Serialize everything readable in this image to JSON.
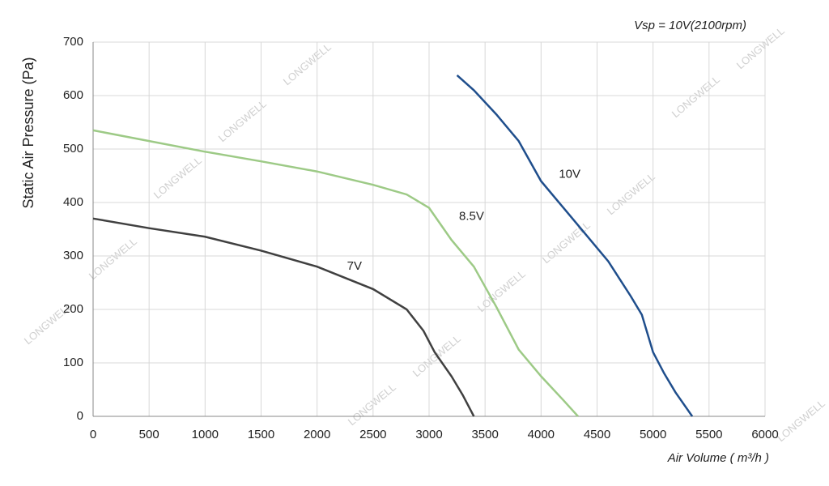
{
  "chart_data": {
    "type": "line",
    "annotation": "Vsp = 10V(2100rpm)",
    "watermark": "LONGWELL",
    "ylabel": "Static Air Pressure  (Pa)",
    "xlabel": "Air Volume ( m³/h )",
    "xlim": [
      0,
      6000
    ],
    "xticks": [
      0,
      500,
      1000,
      1500,
      2000,
      2500,
      3000,
      3500,
      4000,
      4500,
      5000,
      5500,
      6000
    ],
    "ylim": [
      0,
      700
    ],
    "yticks": [
      0,
      100,
      200,
      300,
      400,
      500,
      600,
      700
    ],
    "grid": true,
    "series": [
      {
        "name": "7V",
        "color": "#404040",
        "x": [
          0,
          500,
          1000,
          1500,
          2000,
          2500,
          2800,
          2950,
          3050,
          3200,
          3300,
          3400
        ],
        "values": [
          370,
          352,
          336,
          310,
          280,
          238,
          200,
          160,
          120,
          75,
          40,
          0
        ]
      },
      {
        "name": "8.5V",
        "color": "#9dca86",
        "x": [
          0,
          500,
          1000,
          1500,
          2000,
          2500,
          2800,
          3000,
          3200,
          3400,
          3600,
          3800,
          4000,
          4200,
          4330
        ],
        "values": [
          535,
          515,
          495,
          477,
          458,
          433,
          415,
          390,
          330,
          280,
          205,
          125,
          75,
          30,
          0
        ]
      },
      {
        "name": "10V",
        "color": "#1f4e8c",
        "x": [
          3250,
          3400,
          3600,
          3800,
          4000,
          4200,
          4400,
          4600,
          4800,
          4900,
          5000,
          5100,
          5200,
          5350
        ],
        "values": [
          638,
          610,
          565,
          515,
          440,
          390,
          340,
          290,
          225,
          190,
          120,
          80,
          45,
          0
        ]
      }
    ]
  }
}
